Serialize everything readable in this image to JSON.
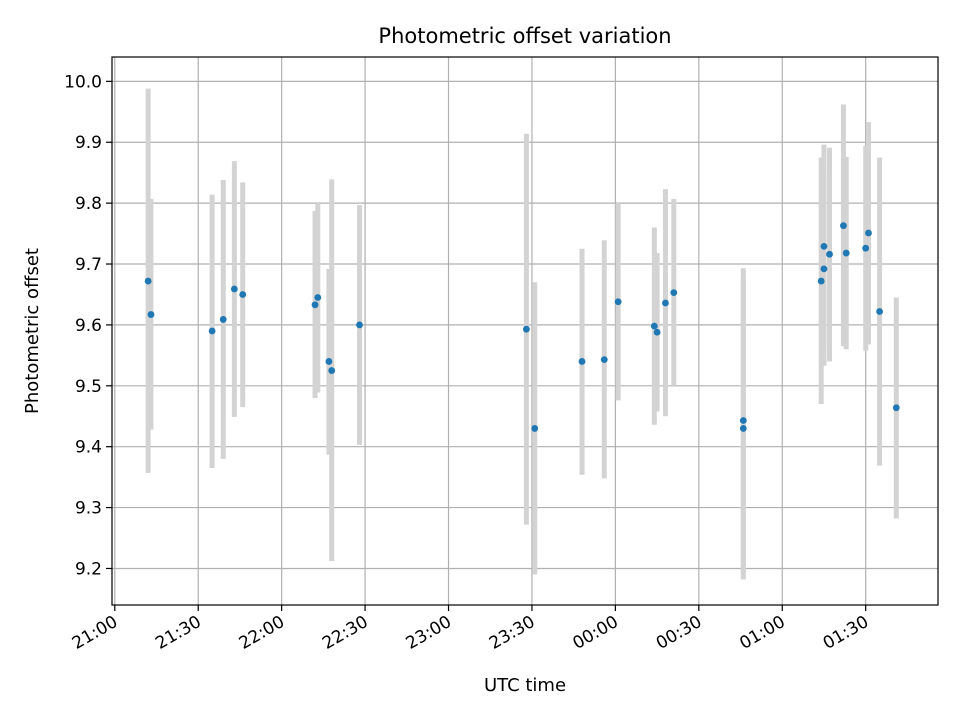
{
  "chart_data": {
    "type": "scatter",
    "title": "Photometric offset variation",
    "xlabel": "UTC time",
    "ylabel": "Photometric offset",
    "x_ticks": [
      "21:00",
      "21:30",
      "22:00",
      "22:30",
      "23:00",
      "23:30",
      "00:00",
      "00:30",
      "01:00",
      "01:30"
    ],
    "y_ticks": [
      "9.2",
      "9.3",
      "9.4",
      "9.5",
      "9.6",
      "9.7",
      "9.8",
      "9.9",
      "10.0"
    ],
    "xlim": [
      "20:59",
      "01:56"
    ],
    "ylim": [
      9.14,
      10.04
    ],
    "grid": true,
    "marker_color": "#1f77b4",
    "errorbar_color": "#d3d3d3",
    "points": [
      {
        "t": "21:12",
        "y": 9.672,
        "lo": 9.357,
        "hi": 9.988
      },
      {
        "t": "21:13",
        "y": 9.617,
        "lo": 9.428,
        "hi": 9.807
      },
      {
        "t": "21:35",
        "y": 9.59,
        "lo": 9.365,
        "hi": 9.814
      },
      {
        "t": "21:39",
        "y": 9.609,
        "lo": 9.38,
        "hi": 9.838
      },
      {
        "t": "21:43",
        "y": 9.659,
        "lo": 9.449,
        "hi": 9.869
      },
      {
        "t": "21:46",
        "y": 9.65,
        "lo": 9.465,
        "hi": 9.834
      },
      {
        "t": "22:12",
        "y": 9.633,
        "lo": 9.48,
        "hi": 9.787
      },
      {
        "t": "22:13",
        "y": 9.645,
        "lo": 9.489,
        "hi": 9.8
      },
      {
        "t": "22:17",
        "y": 9.54,
        "lo": 9.387,
        "hi": 9.692
      },
      {
        "t": "22:18",
        "y": 9.525,
        "lo": 9.212,
        "hi": 9.839
      },
      {
        "t": "22:28",
        "y": 9.6,
        "lo": 9.403,
        "hi": 9.797
      },
      {
        "t": "23:28",
        "y": 9.593,
        "lo": 9.272,
        "hi": 9.914
      },
      {
        "t": "23:31",
        "y": 9.43,
        "lo": 9.19,
        "hi": 9.67
      },
      {
        "t": "23:48",
        "y": 9.54,
        "lo": 9.354,
        "hi": 9.725
      },
      {
        "t": "23:56",
        "y": 9.543,
        "lo": 9.348,
        "hi": 9.739
      },
      {
        "t": "00:01",
        "y": 9.638,
        "lo": 9.476,
        "hi": 9.8
      },
      {
        "t": "00:14",
        "y": 9.598,
        "lo": 9.436,
        "hi": 9.76
      },
      {
        "t": "00:15",
        "y": 9.588,
        "lo": 9.458,
        "hi": 9.718
      },
      {
        "t": "00:18",
        "y": 9.636,
        "lo": 9.45,
        "hi": 9.823
      },
      {
        "t": "00:21",
        "y": 9.653,
        "lo": 9.5,
        "hi": 9.807
      },
      {
        "t": "00:46",
        "y": 9.443,
        "lo": 9.193,
        "hi": 9.693
      },
      {
        "t": "00:46",
        "y": 9.43,
        "lo": 9.182,
        "hi": 9.678
      },
      {
        "t": "01:14",
        "y": 9.672,
        "lo": 9.47,
        "hi": 9.875
      },
      {
        "t": "01:15",
        "y": 9.692,
        "lo": 9.533,
        "hi": 9.851
      },
      {
        "t": "01:15",
        "y": 9.729,
        "lo": 9.563,
        "hi": 9.896
      },
      {
        "t": "01:17",
        "y": 9.716,
        "lo": 9.54,
        "hi": 9.891
      },
      {
        "t": "01:22",
        "y": 9.763,
        "lo": 9.565,
        "hi": 9.962
      },
      {
        "t": "01:23",
        "y": 9.718,
        "lo": 9.56,
        "hi": 9.876
      },
      {
        "t": "01:30",
        "y": 9.726,
        "lo": 9.558,
        "hi": 9.894
      },
      {
        "t": "01:31",
        "y": 9.751,
        "lo": 9.568,
        "hi": 9.933
      },
      {
        "t": "01:35",
        "y": 9.622,
        "lo": 9.369,
        "hi": 9.875
      },
      {
        "t": "01:41",
        "y": 9.464,
        "lo": 9.282,
        "hi": 9.645
      }
    ]
  }
}
